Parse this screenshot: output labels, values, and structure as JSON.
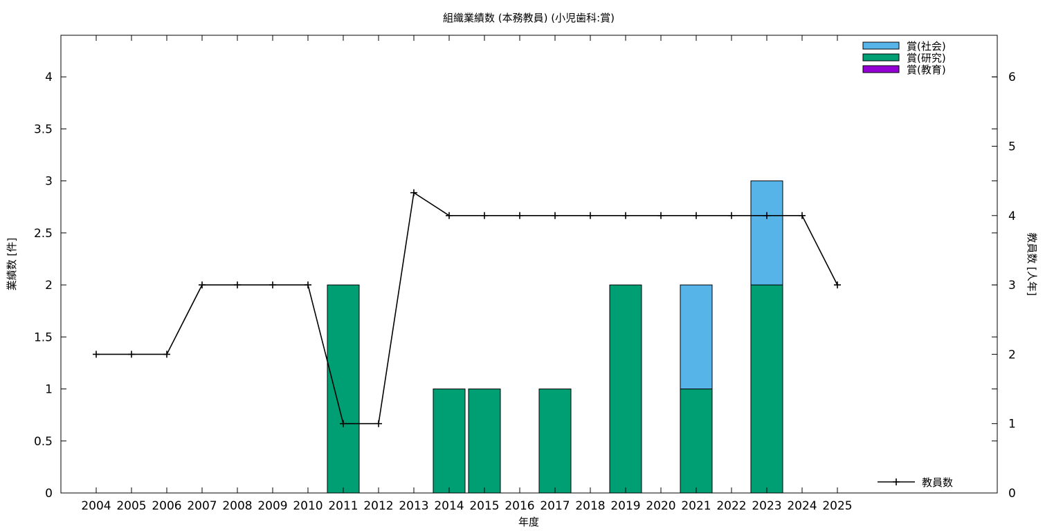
{
  "chart_data": {
    "type": "bar",
    "title": "組織業績数 (本務教員) (小児歯科:賞)",
    "xlabel": "年度",
    "ylabel": "業績数 [件]",
    "y2label": "教員数 [人年]",
    "categories": [
      "2004",
      "2005",
      "2006",
      "2007",
      "2008",
      "2009",
      "2010",
      "2011",
      "2012",
      "2013",
      "2014",
      "2015",
      "2016",
      "2017",
      "2018",
      "2019",
      "2020",
      "2021",
      "2022",
      "2023",
      "2024",
      "2025"
    ],
    "ylim": [
      0,
      4.4
    ],
    "yticks": [
      "0",
      "0.5",
      "1",
      "1.5",
      "2",
      "2.5",
      "3",
      "3.5",
      "4"
    ],
    "y2lim": [
      0,
      6.6
    ],
    "y2ticks": [
      "0",
      "1",
      "2",
      "3",
      "4",
      "5",
      "6"
    ],
    "stacked": true,
    "series": [
      {
        "name": "賞(研究)",
        "color": "#009e73",
        "values": [
          0,
          0,
          0,
          0,
          0,
          0,
          0,
          2,
          0,
          0,
          1,
          1,
          0,
          1,
          0,
          2,
          0,
          1,
          0,
          2,
          0,
          0
        ]
      },
      {
        "name": "賞(社会)",
        "color": "#56b4e9",
        "values": [
          0,
          0,
          0,
          0,
          0,
          0,
          0,
          0,
          0,
          0,
          0,
          0,
          0,
          0,
          0,
          0,
          0,
          1,
          0,
          1,
          0,
          0
        ]
      },
      {
        "name": "賞(教育)",
        "color": "#9400d3",
        "values": [
          0,
          0,
          0,
          0,
          0,
          0,
          0,
          0,
          0,
          0,
          0,
          0,
          0,
          0,
          0,
          0,
          0,
          0,
          0,
          0,
          0,
          0
        ]
      }
    ],
    "legend_order": [
      "賞(社会)",
      "賞(研究)",
      "賞(教育)"
    ],
    "line_series": {
      "name": "教員数",
      "axis": "y2",
      "color": "#000000",
      "values": [
        2,
        2,
        2,
        3,
        3,
        3,
        3,
        1,
        1,
        4.33,
        4,
        4,
        4,
        4,
        4,
        4,
        4,
        4,
        4,
        4,
        4,
        3
      ]
    },
    "legend_position": "top-right",
    "grid": false
  }
}
